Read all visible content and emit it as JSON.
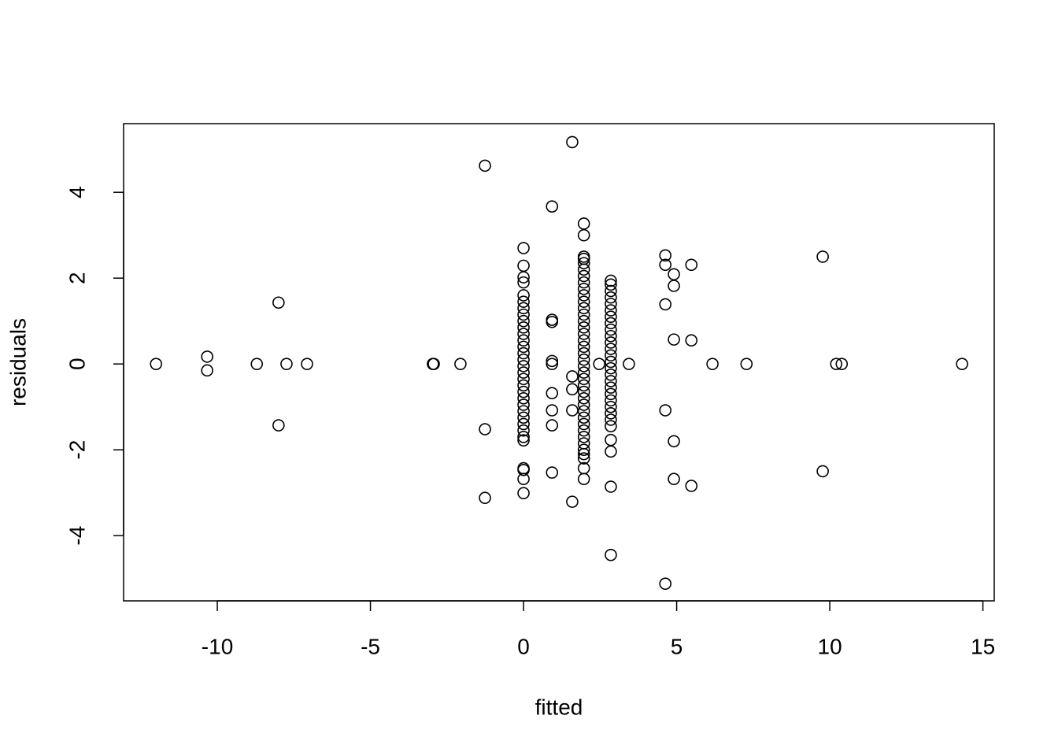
{
  "chart_data": {
    "type": "scatter",
    "xlabel": "fitted",
    "ylabel": "residuals",
    "color": "#000000",
    "xlim": [
      -13.06,
      15.37
    ],
    "ylim": [
      -5.52,
      5.6
    ],
    "xticks": [
      -10,
      -5,
      0,
      5,
      10,
      15
    ],
    "yticks": [
      -4,
      -2,
      0,
      2,
      4
    ],
    "x": [
      -12.0,
      -10.33,
      -10.33,
      -8.71,
      -8.0,
      -8.0,
      -7.74,
      -7.07,
      -2.96,
      -2.93,
      -2.06,
      -1.26,
      -1.26,
      -1.26,
      1.59,
      1.59,
      1.59,
      1.59,
      1.59,
      0.93,
      0.93,
      0.93,
      0.93,
      0.93,
      0.93,
      0.93,
      0.93,
      0.93,
      2.47,
      3.44,
      4.63,
      4.63,
      4.63,
      4.63,
      4.63,
      4.91,
      4.91,
      4.91,
      4.91,
      4.91,
      5.48,
      5.48,
      5.48,
      6.17,
      7.28,
      9.77,
      9.77,
      10.21,
      10.39,
      14.32,
      0,
      0,
      0,
      0,
      0,
      0,
      0,
      0,
      0,
      0,
      0,
      0,
      0,
      0,
      0,
      0,
      0,
      0,
      0,
      0,
      0,
      0,
      0,
      0,
      0,
      0,
      0,
      0,
      0,
      0,
      0,
      0,
      1.97,
      1.97,
      1.97,
      1.97,
      1.97,
      1.97,
      1.97,
      1.97,
      1.97,
      1.97,
      1.97,
      1.97,
      1.97,
      1.97,
      1.97,
      1.97,
      1.97,
      1.97,
      1.97,
      1.97,
      1.97,
      1.97,
      1.97,
      1.97,
      1.97,
      1.97,
      1.97,
      1.97,
      1.97,
      1.97,
      1.97,
      1.97,
      1.97,
      1.97,
      1.97,
      1.97,
      1.97,
      1.97,
      2.85,
      2.85,
      2.85,
      2.85,
      2.85,
      2.85,
      2.85,
      2.85,
      2.85,
      2.85,
      2.85,
      2.85,
      2.85,
      2.85,
      2.85,
      2.85,
      2.85,
      2.85,
      2.85,
      2.85,
      2.85,
      2.85,
      2.85,
      2.85,
      2.85,
      2.85,
      2.85,
      2.85
    ],
    "values": [
      0,
      0.17,
      -0.15,
      0,
      1.43,
      -1.43,
      0,
      0,
      0,
      0,
      0,
      4.62,
      -1.52,
      -3.12,
      5.17,
      -0.29,
      -0.59,
      -1.08,
      -3.21,
      3.67,
      1.03,
      0.98,
      0.07,
      0,
      -0.68,
      -1.08,
      -1.43,
      -2.53,
      0,
      0,
      2.53,
      2.31,
      1.39,
      -1.08,
      -5.12,
      2.09,
      1.82,
      0.57,
      -1.8,
      -2.68,
      2.31,
      0.55,
      -2.84,
      0,
      0,
      2.5,
      -2.5,
      0,
      0,
      0,
      2.7,
      2.29,
      2.02,
      1.9,
      1.6,
      1.45,
      1.3,
      1.15,
      1.0,
      0.85,
      0.7,
      0.55,
      0.4,
      0.25,
      0.1,
      -0.05,
      -0.2,
      -0.35,
      -0.5,
      -0.65,
      -0.8,
      -0.95,
      -1.1,
      -1.25,
      -1.4,
      -1.55,
      -1.7,
      -1.78,
      -2.43,
      -2.47,
      -2.68,
      -3.01,
      3.27,
      3.0,
      2.5,
      2.45,
      2.35,
      2.2,
      2.05,
      1.9,
      1.75,
      1.6,
      1.45,
      1.3,
      1.15,
      1.0,
      0.85,
      0.7,
      0.55,
      0.4,
      0.25,
      0.1,
      -0.05,
      -0.2,
      -0.35,
      -0.5,
      -0.65,
      -0.8,
      -0.95,
      -1.1,
      -1.25,
      -1.4,
      -1.55,
      -1.7,
      -1.85,
      -2.0,
      -2.1,
      -2.2,
      -2.43,
      -2.68,
      1.94,
      1.85,
      1.7,
      1.55,
      1.4,
      1.25,
      1.1,
      0.95,
      0.8,
      0.65,
      0.5,
      0.35,
      0.2,
      0.05,
      -0.1,
      -0.25,
      -0.4,
      -0.55,
      -0.7,
      -0.85,
      -1.0,
      -1.15,
      -1.3,
      -1.45,
      -1.77,
      -2.04,
      -2.86,
      -4.45
    ]
  }
}
